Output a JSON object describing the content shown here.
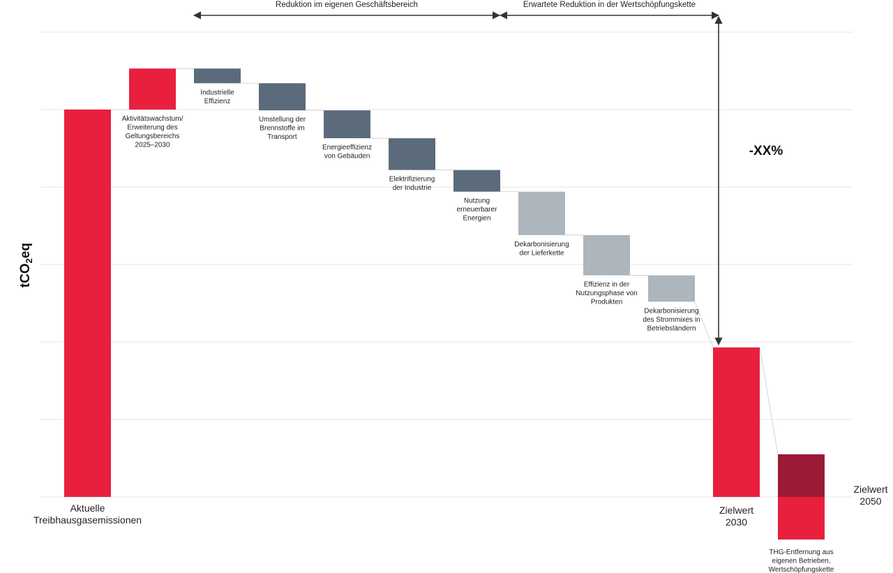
{
  "chart_data": {
    "type": "bar",
    "ylabel": "tCO",
    "ylabel_sub": "2",
    "ylabel_suffix": "eq",
    "ylim": [
      0,
      6
    ],
    "gridlines": [
      0,
      1,
      2,
      3,
      4,
      5,
      6
    ],
    "reduction_label": "-XX%",
    "ranges": [
      {
        "label": "Reduktion im eigenen Geschäftsbereich",
        "from": 1,
        "to": 6
      },
      {
        "label": "Erwartete Reduktion in der Wertschöpfungskette",
        "from": 6,
        "to": 10
      }
    ],
    "steps": [
      {
        "label": [
          "Aktuelle",
          "Treibhausgasemissionen"
        ],
        "start": 0,
        "end": 5.0,
        "kind": "total",
        "color": "#e8203e"
      },
      {
        "label": [
          "Aktivitätswachstum/",
          "Erweiterung des",
          "Geltungsbereichs",
          "2025–2030"
        ],
        "start": 5.0,
        "end": 5.53,
        "kind": "increase",
        "color": "#e8203e"
      },
      {
        "label": [
          "Industrielle",
          "Effizienz"
        ],
        "start": 5.53,
        "end": 5.34,
        "kind": "decrease",
        "color": "#5b6b7c"
      },
      {
        "label": [
          "Umstellung der",
          "Brennstoffe im",
          "Transport"
        ],
        "start": 5.34,
        "end": 4.99,
        "kind": "decrease",
        "color": "#5b6b7c"
      },
      {
        "label": [
          "Energieeffizienz",
          "von Gebäuden"
        ],
        "start": 4.99,
        "end": 4.63,
        "kind": "decrease",
        "color": "#5b6b7c"
      },
      {
        "label": [
          "Elektrifizierung",
          "der Industrie"
        ],
        "start": 4.63,
        "end": 4.22,
        "kind": "decrease",
        "color": "#5b6b7c"
      },
      {
        "label": [
          "Nutzung",
          "erneuerbarer",
          "Energien"
        ],
        "start": 4.22,
        "end": 3.94,
        "kind": "decrease",
        "color": "#5b6b7c"
      },
      {
        "label": [
          "Dekarbonisierung",
          "der Lieferkette"
        ],
        "start": 3.94,
        "end": 3.38,
        "kind": "decrease",
        "color": "#adb5bd"
      },
      {
        "label": [
          "Effizienz in der",
          "Nutzungsphase von",
          "Produkten"
        ],
        "start": 3.38,
        "end": 2.86,
        "kind": "decrease",
        "color": "#adb5bd"
      },
      {
        "label": [
          "Dekarbonisierung",
          "des Strommixes in",
          "Betriebsländern"
        ],
        "start": 2.86,
        "end": 2.52,
        "kind": "decrease",
        "color": "#adb5bd"
      },
      {
        "label": [
          "Zielwert",
          "2030"
        ],
        "start": 0,
        "end": 1.93,
        "kind": "total",
        "color": "#e8203e"
      },
      {
        "label": [
          "Zielwert",
          "2050"
        ],
        "start": 0,
        "end": 0.55,
        "kind": "total",
        "color": "#9b1a35",
        "removal": {
          "label": [
            "THG-Entfernung aus",
            "eigenen Betrieben,",
            "Wertschöpfungskette"
          ],
          "value": -0.55,
          "color": "#e8203e"
        }
      }
    ]
  }
}
